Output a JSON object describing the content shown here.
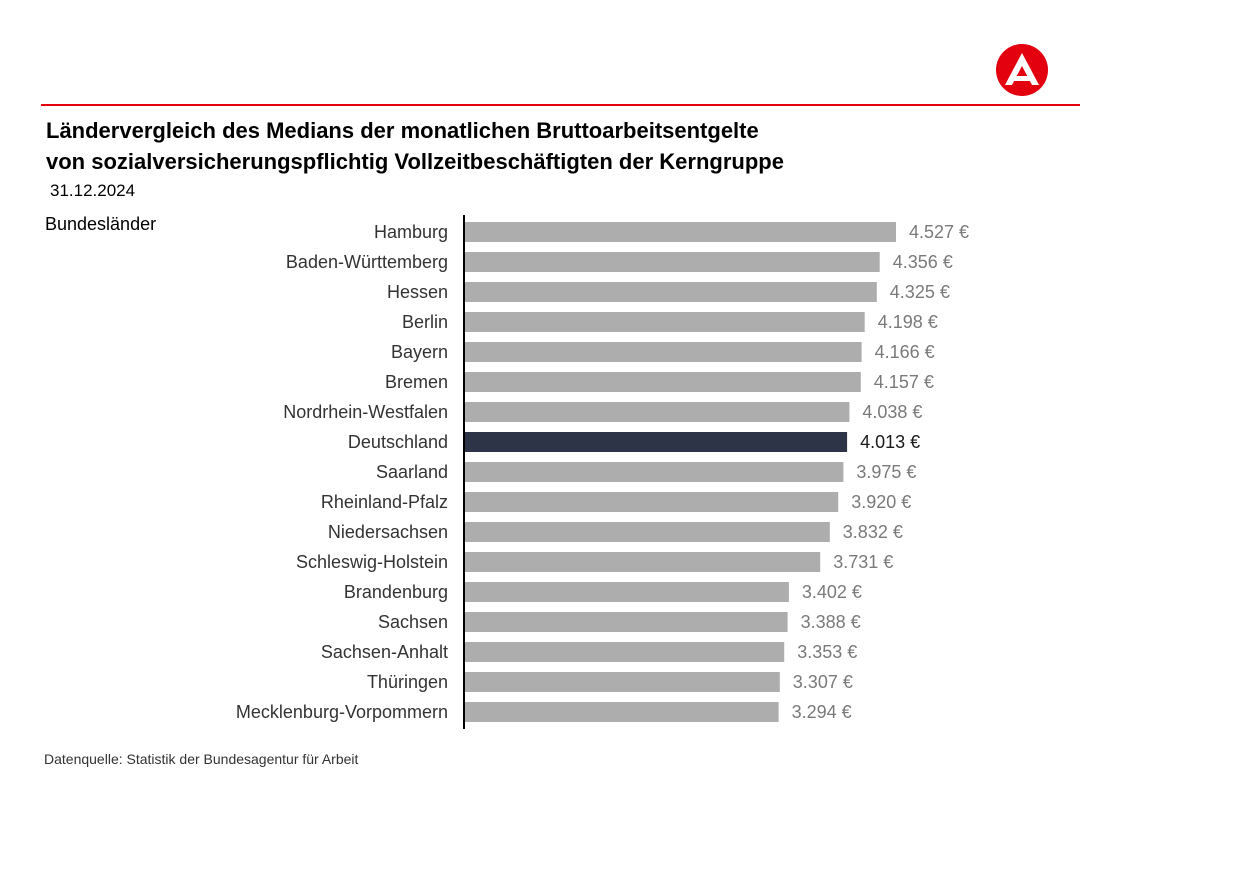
{
  "header": {
    "title_line1": "Ländervergleich des Medians der monatlichen Bruttoarbeitsentgelte",
    "title_line2": "von sozialversicherungspflichtig Vollzeitbeschäftigten der Kerngruppe",
    "date": "31.12.2024",
    "category_heading": "Bundesländer"
  },
  "logo": {
    "icon": "bundesagentur-fuer-arbeit-logo",
    "color": "#e3000f"
  },
  "footer": {
    "source": "Datenquelle: Statistik der Bundesagentur für Arbeit"
  },
  "colors": {
    "accent_red": "#e3000f",
    "bar_default": "#adadad",
    "bar_highlight": "#2e3447",
    "label_default": "#7a7a7a",
    "label_highlight": "#1a1a1a"
  },
  "chart_data": {
    "type": "bar",
    "orientation": "horizontal",
    "title": "Ländervergleich des Medians der monatlichen Bruttoarbeitsentgelte von sozialversicherungspflichtig Vollzeitbeschäftigten der Kerngruppe",
    "subtitle": "31.12.2024",
    "xlabel": "",
    "ylabel": "Bundesländer",
    "unit": "€",
    "xlim": [
      0,
      4800
    ],
    "grid": false,
    "legend": "none",
    "highlight": "Deutschland",
    "categories": [
      "Hamburg",
      "Baden-Württemberg",
      "Hessen",
      "Berlin",
      "Bayern",
      "Bremen",
      "Nordrhein-Westfalen",
      "Deutschland",
      "Saarland",
      "Rheinland-Pfalz",
      "Niedersachsen",
      "Schleswig-Holstein",
      "Brandenburg",
      "Sachsen",
      "Sachsen-Anhalt",
      "Thüringen",
      "Mecklenburg-Vorpommern"
    ],
    "values": [
      4527,
      4356,
      4325,
      4198,
      4166,
      4157,
      4038,
      4013,
      3975,
      3920,
      3832,
      3731,
      3402,
      3388,
      3353,
      3307,
      3294
    ],
    "value_labels": [
      "4.527 €",
      "4.356 €",
      "4.325 €",
      "4.198 €",
      "4.166 €",
      "4.157 €",
      "4.038 €",
      "4.013 €",
      "3.975 €",
      "3.920 €",
      "3.832 €",
      "3.731 €",
      "3.402 €",
      "3.388 €",
      "3.353 €",
      "3.307 €",
      "3.294 €"
    ]
  }
}
